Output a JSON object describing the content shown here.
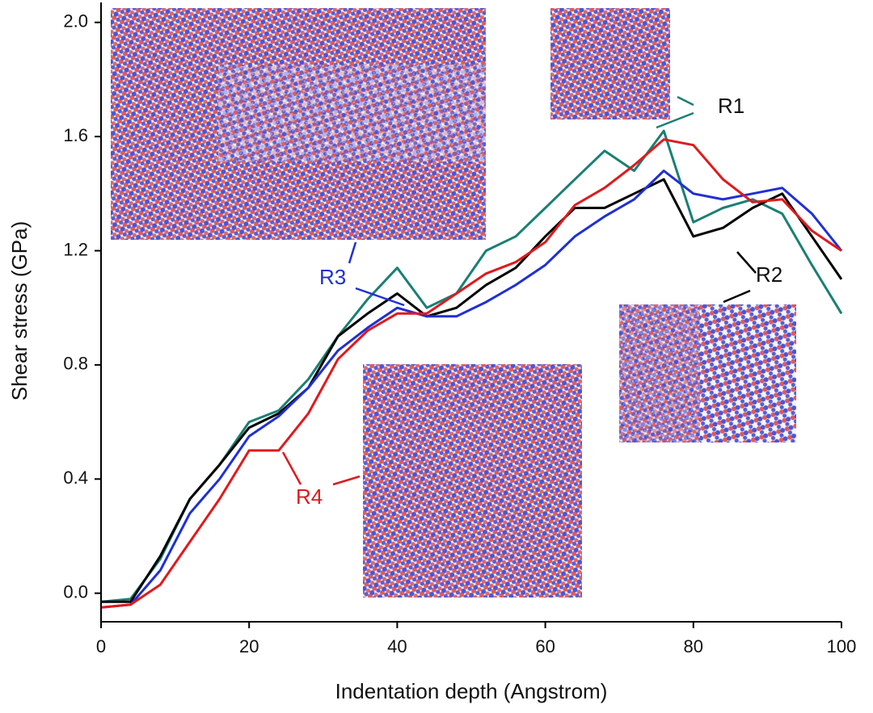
{
  "chart_data": {
    "type": "line",
    "x_label": "Indentation depth (Angstrom)",
    "y_label": "Shear stress (GPa)",
    "x": [
      0,
      4,
      8,
      12,
      16,
      20,
      24,
      28,
      32,
      36,
      40,
      44,
      48,
      52,
      56,
      60,
      64,
      68,
      72,
      76,
      80,
      84,
      88,
      92,
      96,
      100
    ],
    "series": [
      {
        "name": "R1",
        "color": "#1a7f74",
        "values": [
          -0.03,
          -0.02,
          0.12,
          0.33,
          0.45,
          0.6,
          0.64,
          0.75,
          0.9,
          1.03,
          1.14,
          1.0,
          1.05,
          1.2,
          1.25,
          1.35,
          1.45,
          1.55,
          1.48,
          1.62,
          1.3,
          1.35,
          1.38,
          1.33,
          1.15,
          0.98
        ]
      },
      {
        "name": "R2",
        "color": "#000000",
        "values": [
          -0.03,
          -0.03,
          0.13,
          0.33,
          0.45,
          0.58,
          0.63,
          0.72,
          0.9,
          0.98,
          1.05,
          0.97,
          1.0,
          1.08,
          1.14,
          1.25,
          1.35,
          1.35,
          1.4,
          1.45,
          1.25,
          1.28,
          1.35,
          1.4,
          1.25,
          1.1
        ]
      },
      {
        "name": "R3",
        "color": "#1f2fd6",
        "values": [
          -0.05,
          -0.04,
          0.08,
          0.28,
          0.4,
          0.55,
          0.62,
          0.72,
          0.85,
          0.93,
          1.0,
          0.97,
          0.97,
          1.02,
          1.08,
          1.15,
          1.25,
          1.32,
          1.38,
          1.48,
          1.4,
          1.38,
          1.4,
          1.42,
          1.33,
          1.2
        ]
      },
      {
        "name": "R4",
        "color": "#e0191c",
        "values": [
          -0.05,
          -0.04,
          0.03,
          0.18,
          0.33,
          0.5,
          0.5,
          0.63,
          0.82,
          0.92,
          0.98,
          0.98,
          1.05,
          1.12,
          1.16,
          1.23,
          1.36,
          1.42,
          1.5,
          1.59,
          1.57,
          1.45,
          1.37,
          1.38,
          1.27,
          1.2
        ]
      }
    ],
    "xlim": [
      0,
      100
    ],
    "xticks": [
      0,
      20,
      40,
      60,
      80,
      100
    ],
    "ylim": [
      -0.1,
      2.07
    ],
    "yticks": [
      {
        "value": 0,
        "label": "0.0"
      },
      {
        "value": 0.4,
        "label": "0.4"
      },
      {
        "value": 0.8,
        "label": "0.8"
      },
      {
        "value": 1.2,
        "label": "1.2"
      },
      {
        "value": 1.6,
        "label": "1.6"
      },
      {
        "value": 2,
        "label": "2.0"
      }
    ]
  }
}
